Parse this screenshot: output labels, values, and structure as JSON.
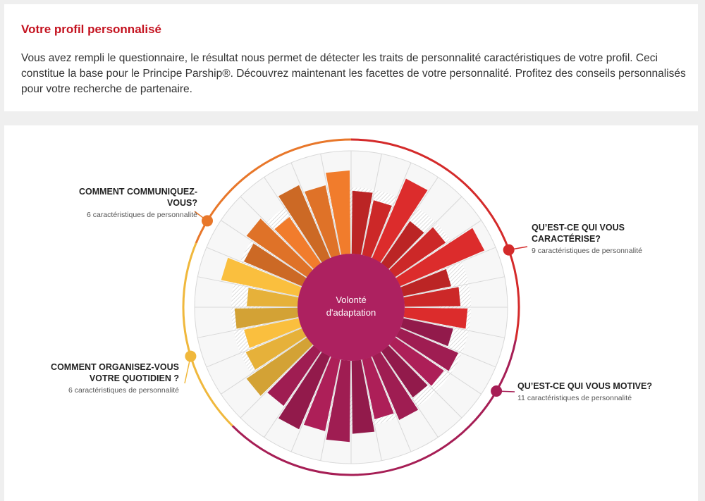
{
  "intro": {
    "title": "Votre profil personnalisé",
    "text": "Vous avez rempli le questionnaire, le résultat nous permet de détecter les traits de personnalité caractéristiques de votre profil. Ceci constitue la base pour le Principe Parship®. Découvrez maintenant les facettes de votre personnalité. Profitez des conseils personnalisés pour votre recherche de partenaire."
  },
  "wheel": {
    "center_label": "Volonté d'adaptation",
    "center_color": "#ad2160",
    "categories": [
      {
        "id": "communication",
        "title": "COMMENT COMMUNIQUEZ-VOUS?",
        "subtitle": "6 caractéristiques de personnalité",
        "color": "#e8772a",
        "values": [
          0.62,
          0.72,
          0.55,
          0.78,
          0.7,
          0.82
        ]
      },
      {
        "id": "caracterise",
        "title": "QU’EST-CE QUI VOUS CARACTÉRISE?",
        "subtitle": "9 caractéristiques de personnalité",
        "color": "#d42a2a",
        "values": [
          0.62,
          0.55,
          0.85,
          0.5,
          0.6,
          0.9,
          0.48,
          0.55,
          0.62
        ]
      },
      {
        "id": "motive",
        "title": "QU’EST-CE QUI VOUS MOTIVE?",
        "subtitle": "11 caractéristiques de personnalité",
        "color": "#a61e55",
        "values": [
          0.5,
          0.62,
          0.58,
          0.55,
          0.68,
          0.6,
          0.72,
          0.8,
          0.72,
          0.78,
          0.65
        ]
      },
      {
        "id": "quotidien",
        "title": "COMMENT ORGANISEZ-VOUS VOTRE QUOTIDIEN ?",
        "subtitle": "6 caractéristiques de personnalité",
        "color": "#f0b83c",
        "values": [
          0.72,
          0.6,
          0.55,
          0.62,
          0.5,
          0.78
        ]
      }
    ]
  }
}
